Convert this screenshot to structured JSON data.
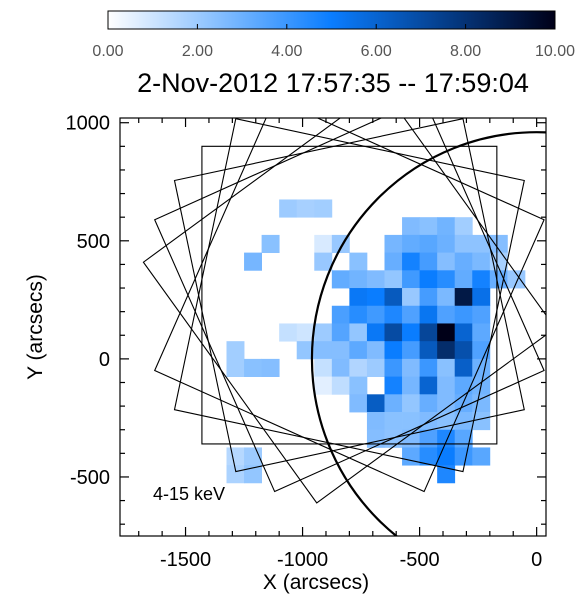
{
  "chart_data": {
    "type": "heatmap",
    "title": "2-Nov-2012 17:57:35 -- 17:59:04",
    "xlabel": "X (arcsecs)",
    "ylabel": "Y (arcsecs)",
    "xlim": [
      -1780,
      40
    ],
    "ylim": [
      -750,
      1020
    ],
    "x_ticks": [
      -1500,
      -1000,
      -500,
      0
    ],
    "x_tick_labels": [
      "-1500",
      "-1000",
      "-500",
      "0"
    ],
    "y_ticks": [
      -500,
      0,
      500,
      1000
    ],
    "y_tick_labels": [
      "-500",
      "0",
      "500",
      "1000"
    ],
    "annotation": "4-15 keV",
    "colorbar": {
      "min": 0,
      "max": 10,
      "ticks": [
        0,
        2,
        4,
        6,
        8,
        10
      ],
      "tick_labels": [
        "0.00",
        "2.00",
        "4.00",
        "6.00",
        "8.00",
        "10.00"
      ],
      "colors": [
        "#ffffff",
        "#0a7dff",
        "#000018"
      ]
    },
    "grid": {
      "x0": -1400,
      "y_top": 750,
      "pixel_size": 75,
      "values": [
        [
          0,
          0,
          0,
          0,
          0,
          0,
          0,
          0,
          0,
          0,
          0,
          0,
          0,
          0,
          0,
          0,
          0,
          0
        ],
        [
          0,
          0,
          0,
          0,
          2.0,
          1.8,
          1.9,
          0,
          0,
          0,
          0,
          0,
          0,
          0,
          0,
          0,
          0,
          0
        ],
        [
          0,
          0,
          0,
          0,
          0,
          0,
          0,
          0,
          0,
          0,
          0,
          2.6,
          2.4,
          2.9,
          1.9,
          0,
          0,
          0
        ],
        [
          0,
          0,
          0,
          2.4,
          0,
          0,
          0.8,
          2.1,
          0,
          0,
          2.8,
          3.2,
          3.4,
          3.0,
          2.3,
          2.3,
          2.5,
          0
        ],
        [
          0,
          0,
          2.8,
          0,
          0,
          0,
          2.1,
          0,
          2.4,
          0,
          3.1,
          4.8,
          3.8,
          2.5,
          3.1,
          2.7,
          1.8,
          0
        ],
        [
          0,
          0,
          0,
          0,
          0,
          0,
          0,
          3.2,
          2.9,
          2.6,
          2.2,
          3.9,
          5.0,
          4.4,
          3.2,
          4.8,
          3.1,
          2.1
        ],
        [
          0,
          0,
          0,
          0,
          0,
          0,
          0,
          0,
          5.2,
          5.0,
          6.4,
          2.1,
          3.8,
          2.7,
          9.0,
          5.5,
          0,
          0
        ],
        [
          0,
          0,
          0,
          0,
          0,
          0,
          0,
          3.7,
          4.4,
          3.9,
          4.6,
          3.6,
          5.3,
          3.6,
          4.0,
          3.6,
          0,
          0
        ],
        [
          0,
          0,
          0,
          0,
          1.2,
          1.0,
          2.0,
          3.5,
          2.2,
          5.2,
          7.0,
          5.0,
          7.2,
          10.0,
          6.0,
          3.3,
          0,
          0
        ],
        [
          0,
          1.9,
          0,
          0,
          0,
          2.2,
          2.5,
          2.5,
          3.3,
          2.6,
          5.0,
          3.8,
          6.4,
          8.2,
          6.8,
          3.6,
          0,
          0
        ],
        [
          0,
          1.9,
          2.4,
          2.5,
          0,
          0,
          1.2,
          2.6,
          1.6,
          2.0,
          4.0,
          2.6,
          4.0,
          2.4,
          6.2,
          3.0,
          0,
          0
        ],
        [
          0,
          0,
          0,
          0,
          0,
          0,
          0.6,
          1.3,
          2.4,
          0,
          4.8,
          2.8,
          6.0,
          2.6,
          3.3,
          2.9,
          0,
          0
        ],
        [
          0,
          0,
          0,
          0,
          0,
          0,
          0,
          0,
          2.6,
          6.3,
          3.0,
          2.2,
          3.1,
          2.6,
          3.1,
          2.7,
          0,
          0
        ],
        [
          0,
          0,
          0,
          0,
          0,
          0,
          0,
          0,
          0,
          2.6,
          2.4,
          2.4,
          2.6,
          2.4,
          2.7,
          2.4,
          0,
          0
        ],
        [
          0,
          0,
          0,
          0,
          0,
          0,
          0,
          0,
          0,
          2.5,
          2.3,
          2.6,
          3.6,
          4.6,
          3.4,
          0,
          0,
          0
        ],
        [
          0,
          1.5,
          2.0,
          0,
          0,
          0,
          0,
          0,
          0,
          0,
          0,
          3.3,
          4.4,
          5.0,
          4.0,
          3.4,
          0,
          0
        ],
        [
          0,
          1.7,
          2.2,
          0,
          0,
          0,
          0,
          0,
          0,
          0,
          0,
          0,
          0,
          4.6,
          0,
          0,
          0,
          0
        ],
        [
          0,
          0,
          0,
          0,
          0,
          0,
          0,
          0,
          0,
          0,
          0,
          0,
          0,
          0,
          0,
          0,
          0,
          0
        ]
      ]
    },
    "fov": {
      "center": [
        -800,
        270
      ],
      "size": 1260,
      "rotations_deg": [
        0,
        12,
        -12,
        24,
        -24,
        36
      ]
    },
    "limb": {
      "center": [
        0,
        0
      ],
      "radius": 960
    }
  }
}
